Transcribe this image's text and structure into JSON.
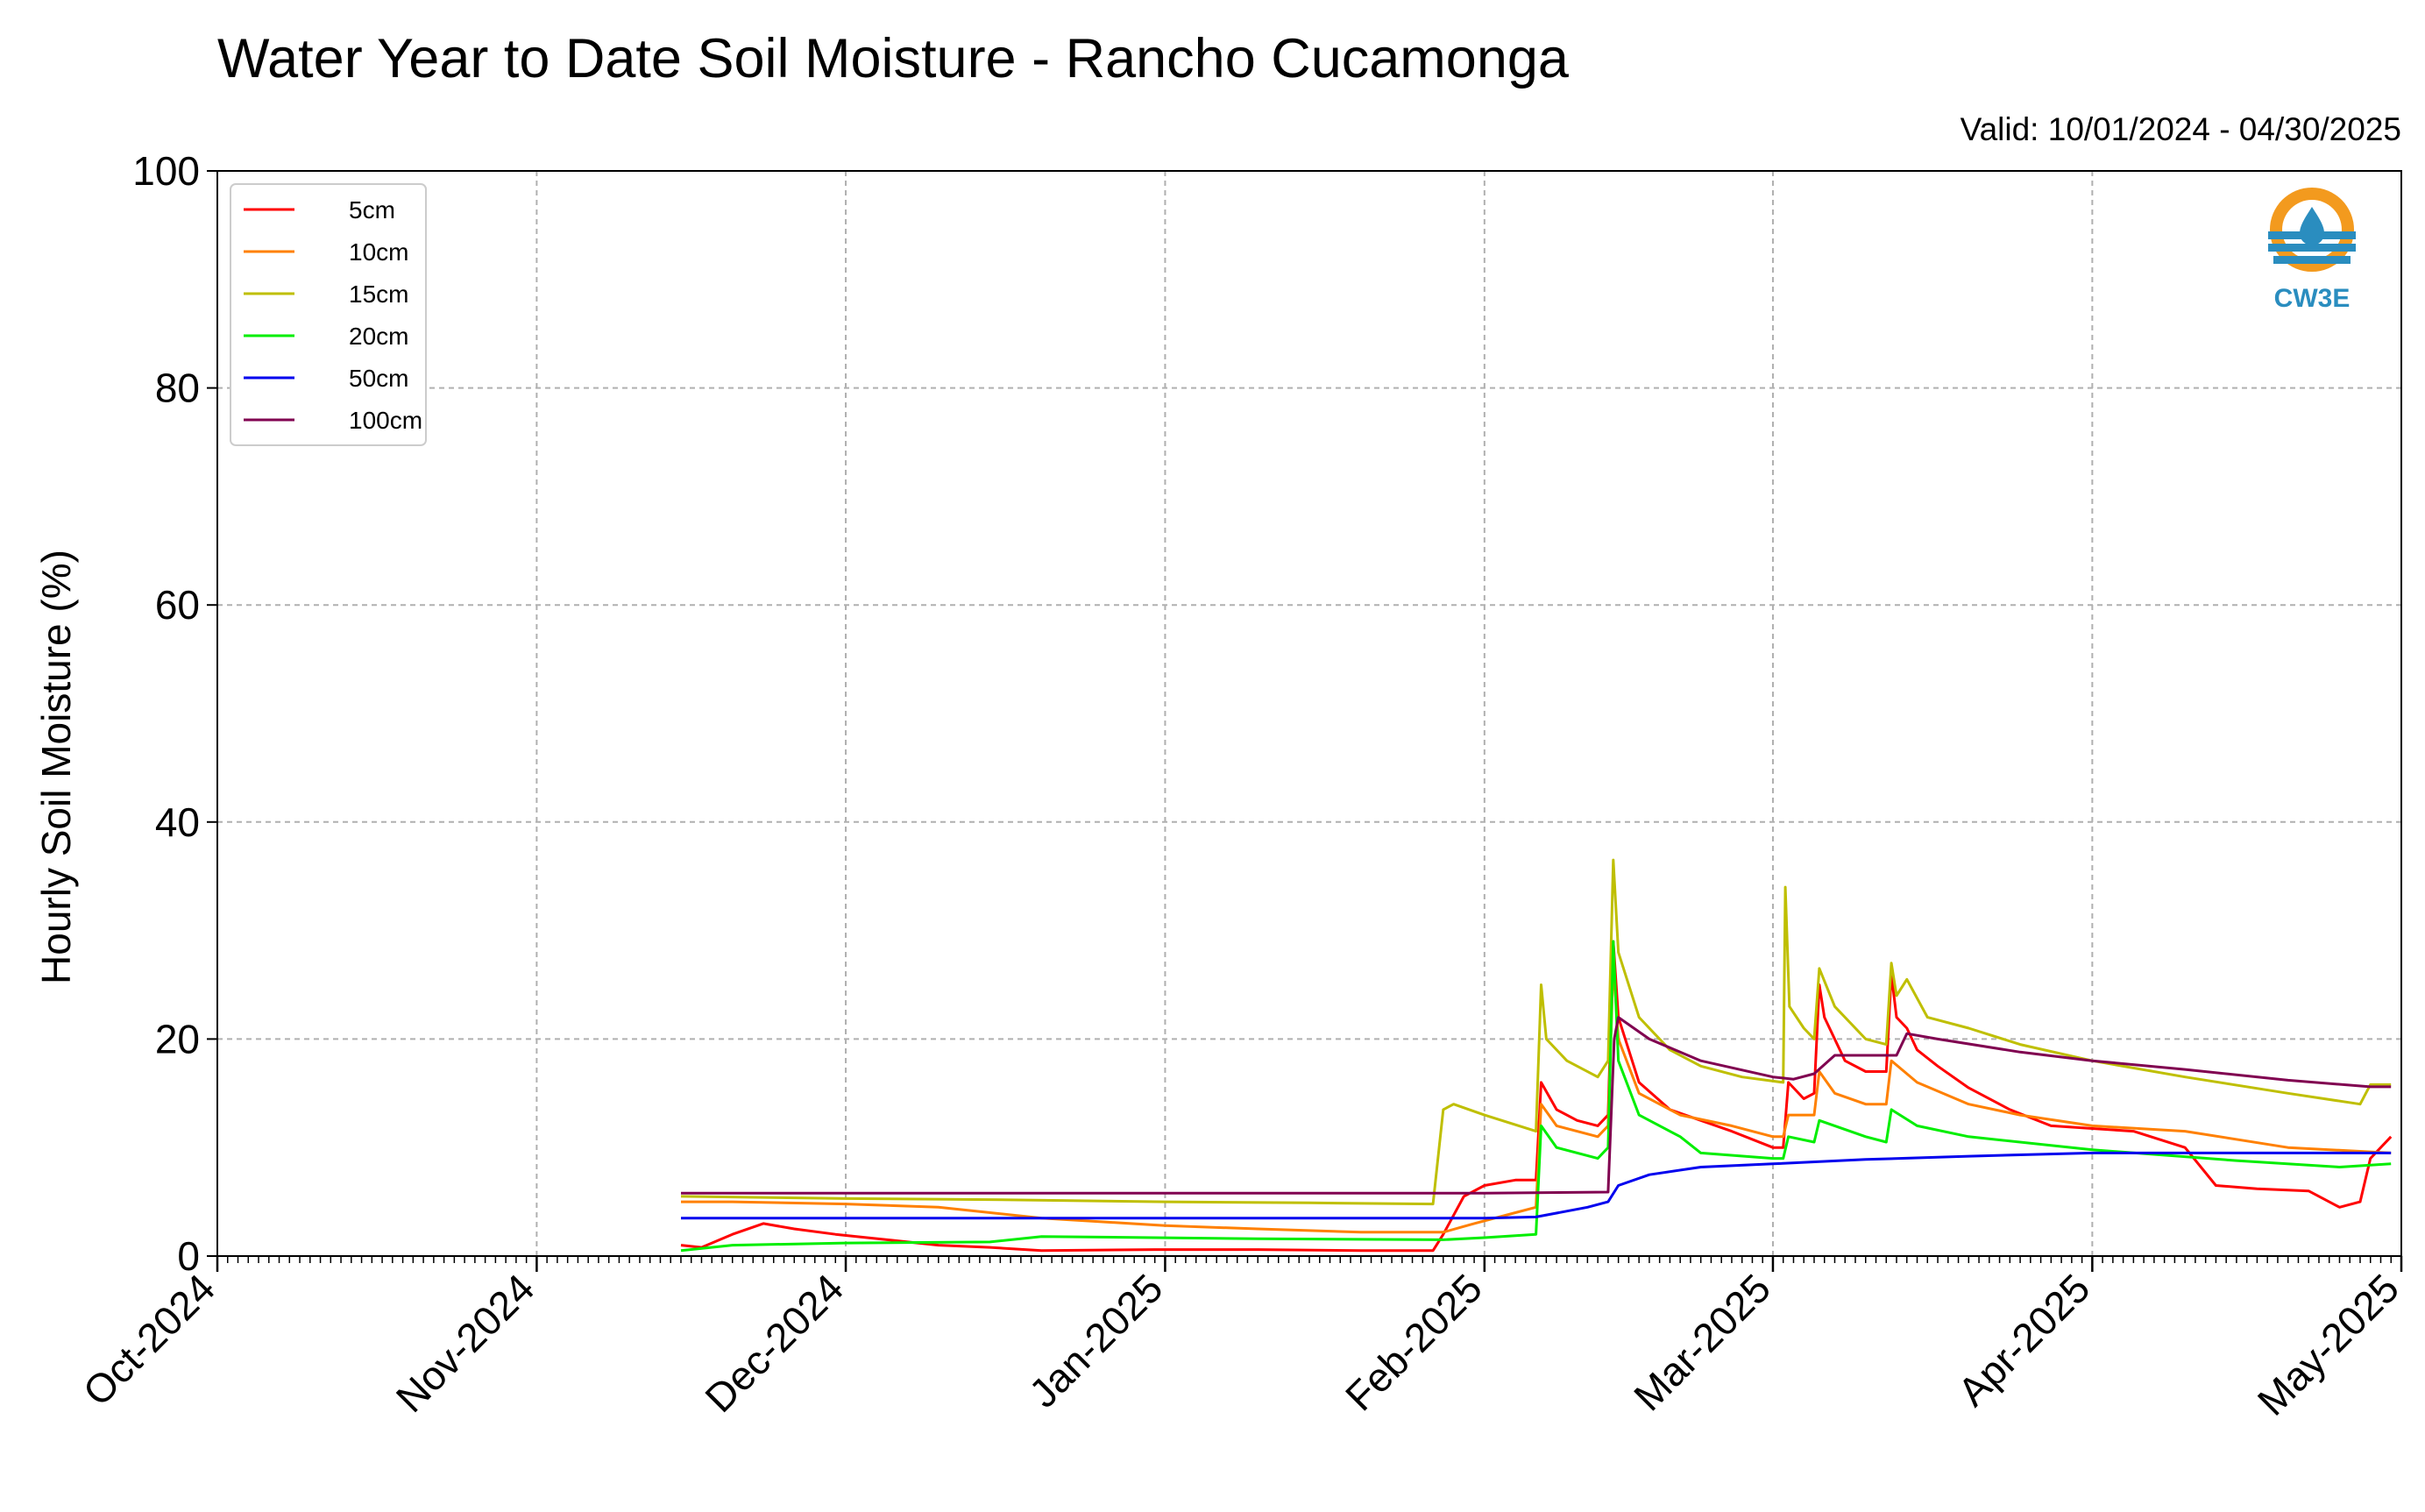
{
  "chart_data": {
    "type": "line",
    "title": "Water Year to Date Soil Moisture - Rancho Cucamonga",
    "subtitle": "Valid: 10/01/2024 - 04/30/2025",
    "ylabel": "Hourly Soil Moisture (%)",
    "xlabel": "",
    "ylim": [
      0,
      100
    ],
    "yticks": [
      0,
      20,
      40,
      60,
      80,
      100
    ],
    "xlim": [
      "2024-10-01",
      "2025-05-01"
    ],
    "xticks": [
      {
        "date": "2024-10-01",
        "label": "Oct-2024"
      },
      {
        "date": "2024-11-01",
        "label": "Nov-2024"
      },
      {
        "date": "2024-12-01",
        "label": "Dec-2024"
      },
      {
        "date": "2025-01-01",
        "label": "Jan-2025"
      },
      {
        "date": "2025-02-01",
        "label": "Feb-2025"
      },
      {
        "date": "2025-03-01",
        "label": "Mar-2025"
      },
      {
        "date": "2025-04-01",
        "label": "Apr-2025"
      },
      {
        "date": "2025-05-01",
        "label": "May-2025"
      }
    ],
    "grid": true,
    "legend_position": "top-left",
    "logo_text": "CW3E",
    "series": [
      {
        "name": "5cm",
        "color": "#ff0000",
        "points": [
          [
            "2024-11-15",
            1.0
          ],
          [
            "2024-11-17",
            0.8
          ],
          [
            "2024-11-20",
            2.0
          ],
          [
            "2024-11-23",
            3.0
          ],
          [
            "2024-11-26",
            2.5
          ],
          [
            "2024-11-30",
            2.0
          ],
          [
            "2024-12-05",
            1.5
          ],
          [
            "2024-12-10",
            1.0
          ],
          [
            "2024-12-15",
            0.8
          ],
          [
            "2024-12-20",
            0.5
          ],
          [
            "2024-12-31",
            0.6
          ],
          [
            "2025-01-10",
            0.6
          ],
          [
            "2025-01-20",
            0.5
          ],
          [
            "2025-01-27",
            0.5
          ],
          [
            "2025-01-28",
            2.0
          ],
          [
            "2025-01-30",
            5.5
          ],
          [
            "2025-02-01",
            6.5
          ],
          [
            "2025-02-04",
            7.0
          ],
          [
            "2025-02-06",
            7.0
          ],
          [
            "2025-02-06.5",
            16.0
          ],
          [
            "2025-02-08",
            13.5
          ],
          [
            "2025-02-10",
            12.5
          ],
          [
            "2025-02-12",
            12.0
          ],
          [
            "2025-02-13",
            13.0
          ],
          [
            "2025-02-13.5",
            29.0
          ],
          [
            "2025-02-14",
            22.0
          ],
          [
            "2025-02-16",
            16.0
          ],
          [
            "2025-02-19",
            13.5
          ],
          [
            "2025-02-22",
            12.5
          ],
          [
            "2025-02-25",
            11.5
          ],
          [
            "2025-03-01",
            10.0
          ],
          [
            "2025-03-02",
            10.0
          ],
          [
            "2025-03-02.5",
            16.0
          ],
          [
            "2025-03-04",
            14.5
          ],
          [
            "2025-03-05",
            15.0
          ],
          [
            "2025-03-05.5",
            25.0
          ],
          [
            "2025-03-06",
            22.0
          ],
          [
            "2025-03-08",
            18.0
          ],
          [
            "2025-03-10",
            17.0
          ],
          [
            "2025-03-12",
            17.0
          ],
          [
            "2025-03-12.5",
            26.0
          ],
          [
            "2025-03-13",
            22.0
          ],
          [
            "2025-03-14",
            21.0
          ],
          [
            "2025-03-15",
            19.0
          ],
          [
            "2025-03-17",
            17.5
          ],
          [
            "2025-03-20",
            15.5
          ],
          [
            "2025-03-24",
            13.5
          ],
          [
            "2025-03-28",
            12.0
          ],
          [
            "2025-04-05",
            11.5
          ],
          [
            "2025-04-10",
            10.0
          ],
          [
            "2025-04-13",
            6.5
          ],
          [
            "2025-04-17",
            6.2
          ],
          [
            "2025-04-22",
            6.0
          ],
          [
            "2025-04-25",
            4.5
          ],
          [
            "2025-04-27",
            5.0
          ],
          [
            "2025-04-28",
            9.0
          ],
          [
            "2025-04-30",
            11.0
          ]
        ]
      },
      {
        "name": "10cm",
        "color": "#ff8000",
        "points": [
          [
            "2024-11-15",
            5.0
          ],
          [
            "2024-11-20",
            5.0
          ],
          [
            "2024-12-01",
            4.8
          ],
          [
            "2024-12-10",
            4.5
          ],
          [
            "2024-12-20",
            3.5
          ],
          [
            "2025-01-01",
            2.8
          ],
          [
            "2025-01-10",
            2.5
          ],
          [
            "2025-01-20",
            2.2
          ],
          [
            "2025-01-28",
            2.2
          ],
          [
            "2025-01-31",
            3.0
          ],
          [
            "2025-02-04",
            4.0
          ],
          [
            "2025-02-06",
            4.5
          ],
          [
            "2025-02-06.5",
            14.0
          ],
          [
            "2025-02-08",
            12.0
          ],
          [
            "2025-02-12",
            11.0
          ],
          [
            "2025-02-13",
            12.0
          ],
          [
            "2025-02-13.5",
            27.0
          ],
          [
            "2025-02-14",
            20.0
          ],
          [
            "2025-02-16",
            15.0
          ],
          [
            "2025-02-20",
            13.0
          ],
          [
            "2025-02-25",
            12.0
          ],
          [
            "2025-03-01",
            11.0
          ],
          [
            "2025-03-02",
            11.0
          ],
          [
            "2025-03-02.5",
            13.0
          ],
          [
            "2025-03-05",
            13.0
          ],
          [
            "2025-03-05.5",
            17.0
          ],
          [
            "2025-03-07",
            15.0
          ],
          [
            "2025-03-10",
            14.0
          ],
          [
            "2025-03-12",
            14.0
          ],
          [
            "2025-03-12.5",
            18.0
          ],
          [
            "2025-03-15",
            16.0
          ],
          [
            "2025-03-20",
            14.0
          ],
          [
            "2025-03-25",
            13.0
          ],
          [
            "2025-04-01",
            12.0
          ],
          [
            "2025-04-10",
            11.5
          ],
          [
            "2025-04-20",
            10.0
          ],
          [
            "2025-04-30",
            9.5
          ]
        ]
      },
      {
        "name": "15cm",
        "color": "#bfbf00",
        "points": [
          [
            "2024-11-15",
            5.5
          ],
          [
            "2024-12-01",
            5.3
          ],
          [
            "2024-12-15",
            5.2
          ],
          [
            "2025-01-01",
            5.0
          ],
          [
            "2025-01-15",
            4.9
          ],
          [
            "2025-01-27",
            4.8
          ],
          [
            "2025-01-28",
            13.5
          ],
          [
            "2025-01-29",
            14.0
          ],
          [
            "2025-02-01",
            13.0
          ],
          [
            "2025-02-06",
            11.5
          ],
          [
            "2025-02-06.5",
            25.0
          ],
          [
            "2025-02-07",
            20.0
          ],
          [
            "2025-02-09",
            18.0
          ],
          [
            "2025-02-12",
            16.5
          ],
          [
            "2025-02-13",
            18.0
          ],
          [
            "2025-02-13.5",
            36.5
          ],
          [
            "2025-02-14",
            28.0
          ],
          [
            "2025-02-16",
            22.0
          ],
          [
            "2025-02-19",
            19.0
          ],
          [
            "2025-02-22",
            17.5
          ],
          [
            "2025-02-26",
            16.5
          ],
          [
            "2025-03-02",
            16.0
          ],
          [
            "2025-03-02.2",
            34.0
          ],
          [
            "2025-03-02.6",
            23.0
          ],
          [
            "2025-03-04",
            21.0
          ],
          [
            "2025-03-05",
            20.0
          ],
          [
            "2025-03-05.5",
            26.5
          ],
          [
            "2025-03-07",
            23.0
          ],
          [
            "2025-03-10",
            20.0
          ],
          [
            "2025-03-12",
            19.5
          ],
          [
            "2025-03-12.5",
            27.0
          ],
          [
            "2025-03-13",
            24.0
          ],
          [
            "2025-03-14",
            25.5
          ],
          [
            "2025-03-16",
            22.0
          ],
          [
            "2025-03-20",
            21.0
          ],
          [
            "2025-03-25",
            19.5
          ],
          [
            "2025-04-01",
            18.0
          ],
          [
            "2025-04-10",
            16.5
          ],
          [
            "2025-04-20",
            15.0
          ],
          [
            "2025-04-27",
            14.0
          ],
          [
            "2025-04-28",
            15.8
          ],
          [
            "2025-04-30",
            15.8
          ]
        ]
      },
      {
        "name": "20cm",
        "color": "#00ee00",
        "points": [
          [
            "2024-11-15",
            0.5
          ],
          [
            "2024-11-20",
            1.0
          ],
          [
            "2024-12-01",
            1.2
          ],
          [
            "2024-12-15",
            1.3
          ],
          [
            "2024-12-20",
            1.8
          ],
          [
            "2025-01-10",
            1.6
          ],
          [
            "2025-01-28",
            1.5
          ],
          [
            "2025-02-01",
            1.7
          ],
          [
            "2025-02-06",
            2.0
          ],
          [
            "2025-02-06.5",
            12.0
          ],
          [
            "2025-02-08",
            10.0
          ],
          [
            "2025-02-12",
            9.0
          ],
          [
            "2025-02-13",
            10.0
          ],
          [
            "2025-02-13.5",
            29.0
          ],
          [
            "2025-02-14",
            18.0
          ],
          [
            "2025-02-16",
            13.0
          ],
          [
            "2025-02-20",
            11.0
          ],
          [
            "2025-02-22",
            9.5
          ],
          [
            "2025-03-01",
            9.0
          ],
          [
            "2025-03-02",
            9.0
          ],
          [
            "2025-03-02.5",
            11.0
          ],
          [
            "2025-03-05",
            10.5
          ],
          [
            "2025-03-05.5",
            12.5
          ],
          [
            "2025-03-10",
            11.0
          ],
          [
            "2025-03-12",
            10.5
          ],
          [
            "2025-03-12.5",
            13.5
          ],
          [
            "2025-03-15",
            12.0
          ],
          [
            "2025-03-20",
            11.0
          ],
          [
            "2025-04-01",
            9.8
          ],
          [
            "2025-04-15",
            8.8
          ],
          [
            "2025-04-25",
            8.2
          ],
          [
            "2025-04-30",
            8.5
          ]
        ]
      },
      {
        "name": "50cm",
        "color": "#0000ee",
        "points": [
          [
            "2024-11-15",
            3.5
          ],
          [
            "2024-12-01",
            3.5
          ],
          [
            "2025-01-01",
            3.5
          ],
          [
            "2025-02-01",
            3.5
          ],
          [
            "2025-02-06",
            3.6
          ],
          [
            "2025-02-11",
            4.5
          ],
          [
            "2025-02-13",
            5.0
          ],
          [
            "2025-02-14",
            6.5
          ],
          [
            "2025-02-17",
            7.5
          ],
          [
            "2025-02-22",
            8.2
          ],
          [
            "2025-03-01",
            8.5
          ],
          [
            "2025-03-10",
            8.9
          ],
          [
            "2025-03-20",
            9.2
          ],
          [
            "2025-04-01",
            9.5
          ],
          [
            "2025-04-15",
            9.5
          ],
          [
            "2025-04-30",
            9.5
          ]
        ]
      },
      {
        "name": "100cm",
        "color": "#800050",
        "points": [
          [
            "2024-11-15",
            5.8
          ],
          [
            "2024-12-01",
            5.8
          ],
          [
            "2025-01-01",
            5.8
          ],
          [
            "2025-02-01",
            5.8
          ],
          [
            "2025-02-13",
            5.9
          ],
          [
            "2025-02-13.6",
            20.0
          ],
          [
            "2025-02-14",
            22.0
          ],
          [
            "2025-02-17",
            20.0
          ],
          [
            "2025-02-22",
            18.0
          ],
          [
            "2025-03-01",
            16.5
          ],
          [
            "2025-03-03",
            16.3
          ],
          [
            "2025-03-05",
            16.8
          ],
          [
            "2025-03-07",
            18.5
          ],
          [
            "2025-03-10",
            18.5
          ],
          [
            "2025-03-13",
            18.5
          ],
          [
            "2025-03-14",
            20.5
          ],
          [
            "2025-03-17",
            20.0
          ],
          [
            "2025-03-25",
            18.8
          ],
          [
            "2025-04-01",
            18.0
          ],
          [
            "2025-04-10",
            17.2
          ],
          [
            "2025-04-20",
            16.2
          ],
          [
            "2025-04-28",
            15.6
          ],
          [
            "2025-04-30",
            15.6
          ]
        ]
      }
    ]
  }
}
